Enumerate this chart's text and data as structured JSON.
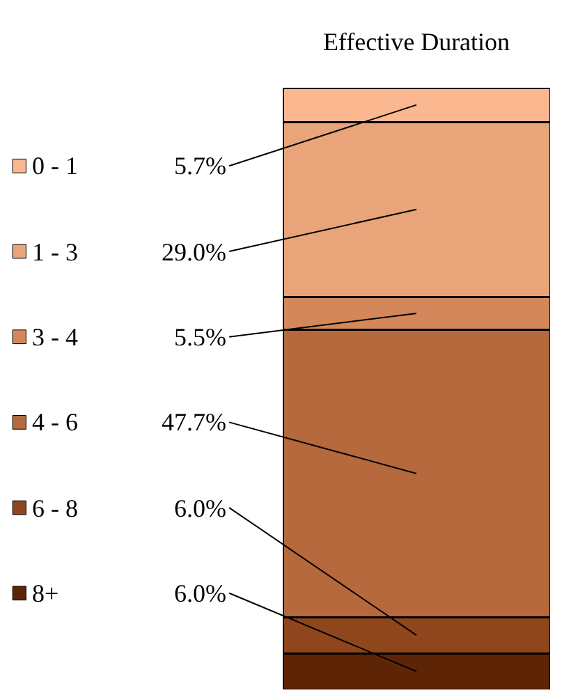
{
  "chart_data": {
    "type": "bar",
    "stacked": true,
    "title": "Effective Duration",
    "categories": [
      null
    ],
    "legend": "left",
    "tick_labels": false,
    "series": [
      {
        "name": "8+",
        "color": "#5e2406",
        "values": [
          6.0
        ],
        "value_labels": [
          "6.0%"
        ]
      },
      {
        "name": "6 - 8",
        "color": "#8f461c",
        "values": [
          6.0
        ],
        "value_labels": [
          "6.0%"
        ]
      },
      {
        "name": "4 - 6",
        "color": "#b5693c",
        "values": [
          47.7
        ],
        "value_labels": [
          "47.7%"
        ]
      },
      {
        "name": "3 - 4",
        "color": "#d4875a",
        "values": [
          5.5
        ],
        "value_labels": [
          "5.5%"
        ]
      },
      {
        "name": "1 - 3",
        "color": "#e9a579",
        "values": [
          29.0
        ],
        "value_labels": [
          "29.0%"
        ]
      },
      {
        "name": "0 - 1",
        "color": "#fbb890",
        "values": [
          5.7
        ],
        "value_labels": [
          "5.7%"
        ]
      }
    ]
  }
}
